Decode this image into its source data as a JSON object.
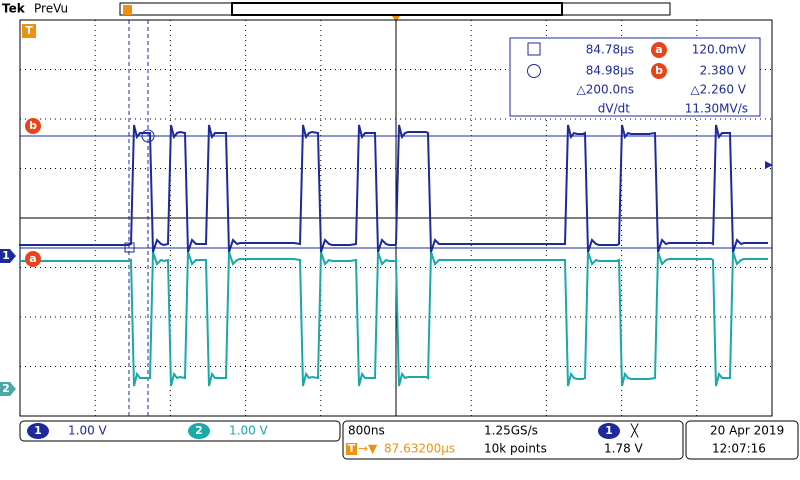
{
  "header": {
    "brand": "Tek",
    "mode": "PreVu"
  },
  "markers": {
    "trigger": "T",
    "cursor_b": "b",
    "ch1": "1",
    "cursor_a": "a",
    "ch2": "2"
  },
  "readout": {
    "rows": [
      [
        "84.78µs",
        "a",
        "120.0mV"
      ],
      [
        "84.98µs",
        "b",
        "2.380 V"
      ],
      [
        "△200.0ns",
        "△2.260 V"
      ],
      [
        "dV/dt",
        "11.30MV/s"
      ]
    ]
  },
  "status": {
    "ch1": {
      "label": "1",
      "scale": "1.00 V"
    },
    "ch2": {
      "label": "2",
      "scale": "1.00 V"
    },
    "timebase": "800ns",
    "sample_rate": "1.25GS/s",
    "trigger_icon": "T",
    "trigger_arrow": "→▼",
    "trigger_position": "87.63200µs",
    "record": "10k points",
    "trigger_source": "1",
    "trigger_slope": "╳",
    "trigger_level": "1.78 V",
    "date": "20 Apr  2019",
    "time": "12:07:16"
  }
}
